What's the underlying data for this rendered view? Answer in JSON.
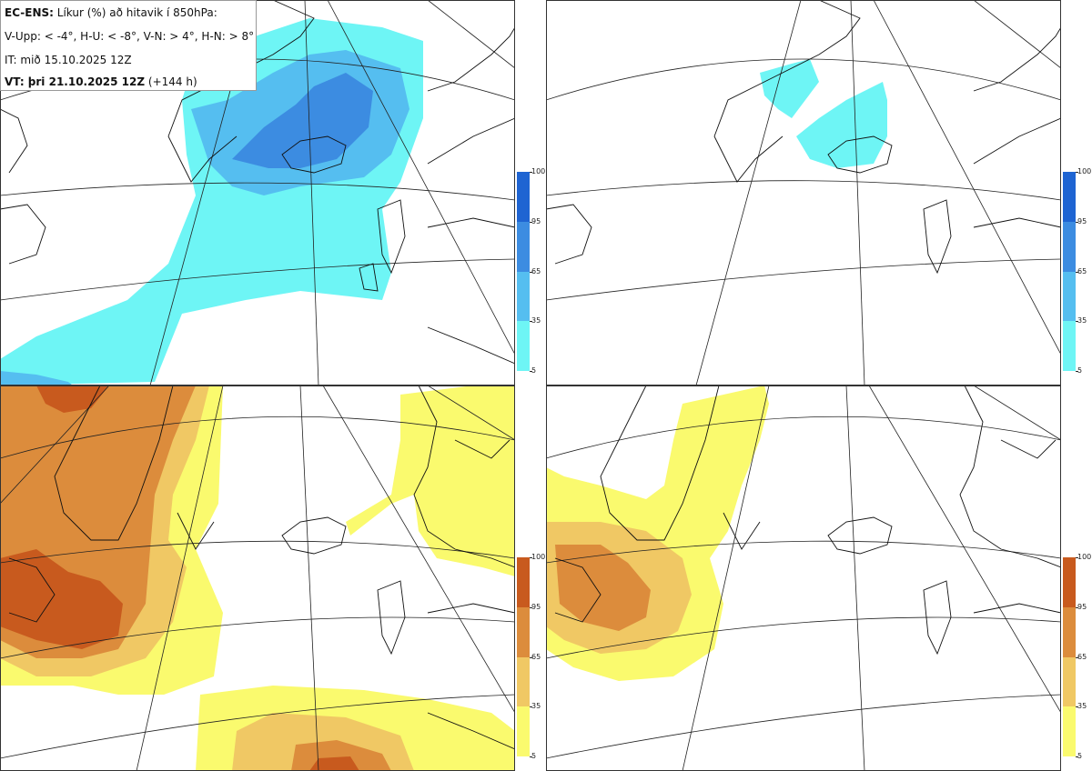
{
  "infobox": {
    "title_bold": "EC-ENS:",
    "title_rest": " Líkur (%) að hitavik í 850hPa:",
    "criteria": "V-Upp: < -4°, H-U: < -8°, V-N: > 4°, H-N: > 8°",
    "it_line": "IT: mið 15.10.2025 12Z",
    "vt_bold": "VT: þri 21.10.2025 12Z",
    "vt_rest": " (+144 h)"
  },
  "colorbar_cold": {
    "ticks": [
      "100",
      "95",
      "65",
      "35",
      "5"
    ],
    "colors": [
      "#1e64d2",
      "#3c8ce1",
      "#55bef0",
      "#6ef5f5"
    ]
  },
  "colorbar_warm": {
    "ticks": [
      "100",
      "95",
      "65",
      "35",
      "5"
    ],
    "colors": [
      "#c85a1e",
      "#dc8c3c",
      "#f0c864",
      "#fafa6e"
    ]
  },
  "panels": [
    {
      "id": "upper-left",
      "field": "cold",
      "threshold": "V-Upp: < -4°"
    },
    {
      "id": "upper-right",
      "field": "cold",
      "threshold": "H-U: < -8°"
    },
    {
      "id": "lower-left",
      "field": "warm",
      "threshold": "V-N: > 4°"
    },
    {
      "id": "lower-right",
      "field": "warm",
      "threshold": "H-N: > 8°"
    }
  ]
}
